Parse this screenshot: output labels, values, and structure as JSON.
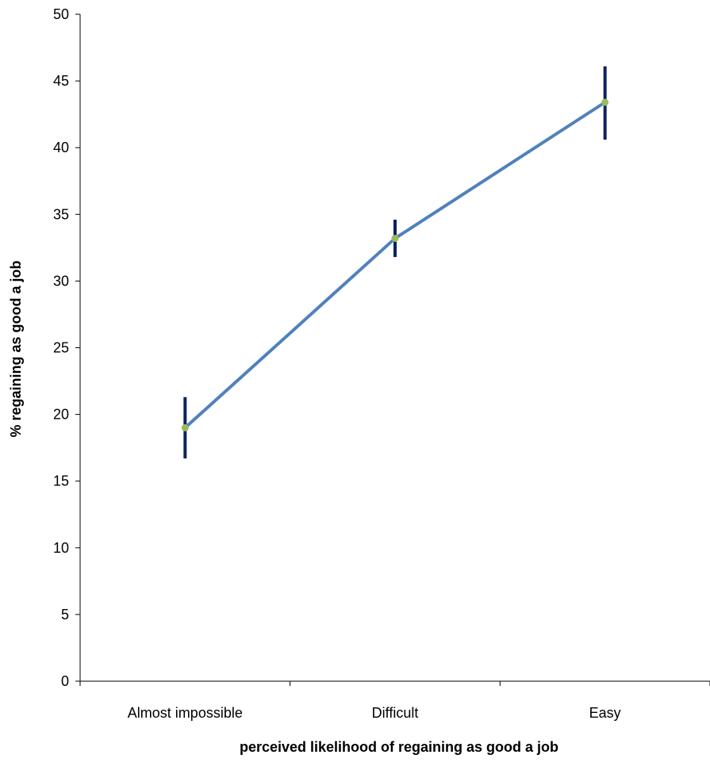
{
  "chart_data": {
    "type": "line",
    "title": "",
    "xlabel": "perceived likelihood of regaining as good a job",
    "ylabel": "% regaining as good a job",
    "categories": [
      "Almost impossible",
      "Difficult",
      "Easy"
    ],
    "series": [
      {
        "values": [
          19.0,
          33.2,
          43.4
        ],
        "error_low": [
          16.7,
          31.8,
          40.6
        ],
        "error_high": [
          21.3,
          34.6,
          46.1
        ]
      }
    ],
    "ylim": [
      0,
      50
    ],
    "yticks": [
      "0",
      "5",
      "10",
      "15",
      "20",
      "25",
      "30",
      "35",
      "40",
      "45",
      "50"
    ],
    "grid": false,
    "legend": "none",
    "colors": {
      "line": "#4f81bd",
      "marker": "#9bbb59",
      "error_bar": "#0b2260",
      "axis": "#000000"
    }
  }
}
